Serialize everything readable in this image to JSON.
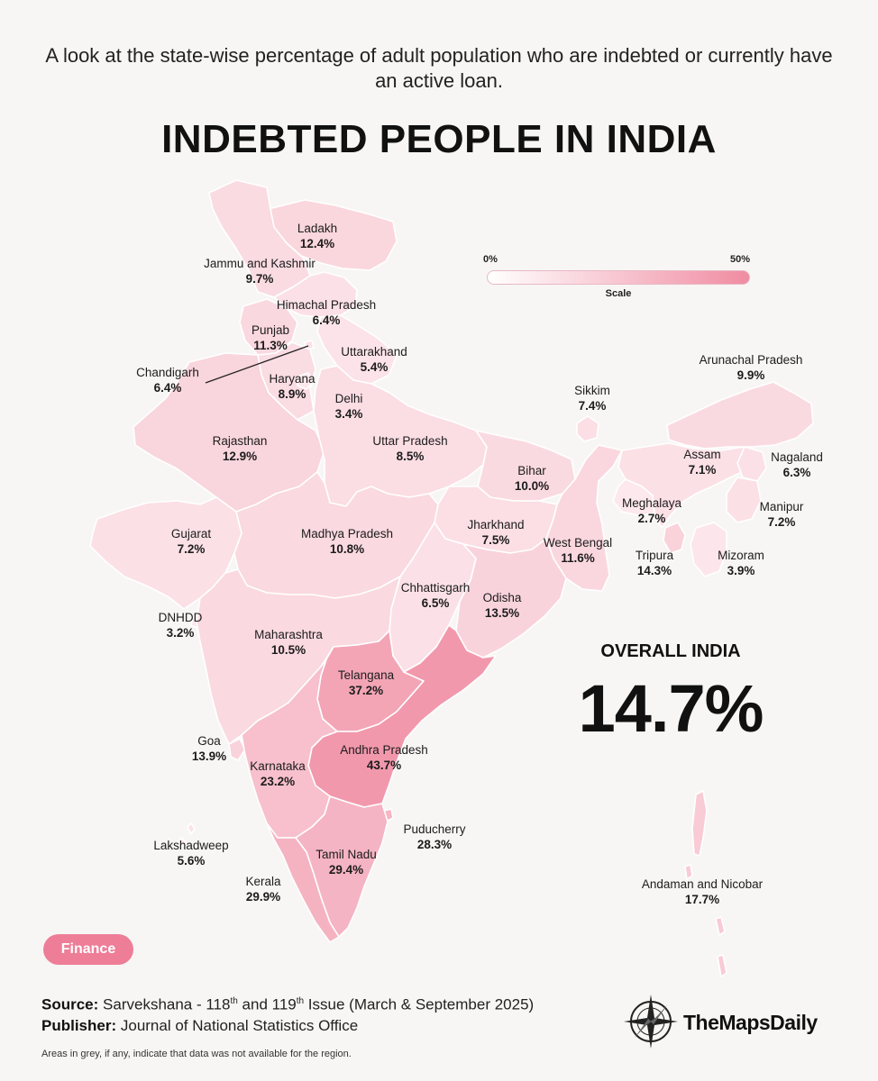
{
  "header": {
    "subtitle": "A look at the state-wise percentage of adult population who are indebted or currently have an active loan.",
    "title": "INDEBTED PEOPLE IN INDIA"
  },
  "scale": {
    "min_label": "0%",
    "max_label": "50%",
    "title": "Scale",
    "min_value": 0,
    "max_value": 50,
    "color_low": "#ffffff",
    "color_high": "#f08ca2"
  },
  "overall": {
    "label": "OVERALL INDIA",
    "value": "14.7%"
  },
  "colors": {
    "border": "#ffffff",
    "sea": "#f7f6f4",
    "leader_line": "#222222"
  },
  "regions": [
    {
      "name": "Ladakh",
      "value": "12.4%",
      "pct": 12.4
    },
    {
      "name": "Jammu and Kashmir",
      "value": "9.7%",
      "pct": 9.7
    },
    {
      "name": "Himachal Pradesh",
      "value": "6.4%",
      "pct": 6.4
    },
    {
      "name": "Punjab",
      "value": "11.3%",
      "pct": 11.3
    },
    {
      "name": "Uttarakhand",
      "value": "5.4%",
      "pct": 5.4
    },
    {
      "name": "Chandigarh",
      "value": "6.4%",
      "pct": 6.4
    },
    {
      "name": "Haryana",
      "value": "8.9%",
      "pct": 8.9
    },
    {
      "name": "Delhi",
      "value": "3.4%",
      "pct": 3.4
    },
    {
      "name": "Rajasthan",
      "value": "12.9%",
      "pct": 12.9
    },
    {
      "name": "Uttar Pradesh",
      "value": "8.5%",
      "pct": 8.5
    },
    {
      "name": "Sikkim",
      "value": "7.4%",
      "pct": 7.4
    },
    {
      "name": "Arunachal Pradesh",
      "value": "9.9%",
      "pct": 9.9
    },
    {
      "name": "Bihar",
      "value": "10.0%",
      "pct": 10.0
    },
    {
      "name": "Assam",
      "value": "7.1%",
      "pct": 7.1
    },
    {
      "name": "Nagaland",
      "value": "6.3%",
      "pct": 6.3
    },
    {
      "name": "Meghalaya",
      "value": "2.7%",
      "pct": 2.7
    },
    {
      "name": "Manipur",
      "value": "7.2%",
      "pct": 7.2
    },
    {
      "name": "Gujarat",
      "value": "7.2%",
      "pct": 7.2
    },
    {
      "name": "Madhya Pradesh",
      "value": "10.8%",
      "pct": 10.8
    },
    {
      "name": "Jharkhand",
      "value": "7.5%",
      "pct": 7.5
    },
    {
      "name": "West Bengal",
      "value": "11.6%",
      "pct": 11.6
    },
    {
      "name": "Tripura",
      "value": "14.3%",
      "pct": 14.3
    },
    {
      "name": "Mizoram",
      "value": "3.9%",
      "pct": 3.9
    },
    {
      "name": "Chhattisgarh",
      "value": "6.5%",
      "pct": 6.5
    },
    {
      "name": "Odisha",
      "value": "13.5%",
      "pct": 13.5
    },
    {
      "name": "DNHDD",
      "value": "3.2%",
      "pct": 3.2
    },
    {
      "name": "Maharashtra",
      "value": "10.5%",
      "pct": 10.5
    },
    {
      "name": "Telangana",
      "value": "37.2%",
      "pct": 37.2
    },
    {
      "name": "Goa",
      "value": "13.9%",
      "pct": 13.9
    },
    {
      "name": "Andhra Pradesh",
      "value": "43.7%",
      "pct": 43.7
    },
    {
      "name": "Karnataka",
      "value": "23.2%",
      "pct": 23.2
    },
    {
      "name": "Puducherry",
      "value": "28.3%",
      "pct": 28.3
    },
    {
      "name": "Lakshadweep",
      "value": "5.6%",
      "pct": 5.6
    },
    {
      "name": "Tamil Nadu",
      "value": "29.4%",
      "pct": 29.4
    },
    {
      "name": "Kerala",
      "value": "29.9%",
      "pct": 29.9
    },
    {
      "name": "Andaman and Nicobar",
      "value": "17.7%",
      "pct": 17.7
    }
  ],
  "badge": {
    "label": "Finance"
  },
  "footer": {
    "source_label": "Source:",
    "source_pre": "Sarvekshana - 118",
    "sup1": "th",
    "source_mid": " and 119",
    "sup2": "th",
    "source_post": " Issue (March & September 2025)",
    "publisher_label": "Publisher:",
    "publisher": "Journal of National Statistics Office",
    "note": "Areas in grey, if any, indicate that data was not available for the region.",
    "brand": "TheMapsDaily"
  }
}
